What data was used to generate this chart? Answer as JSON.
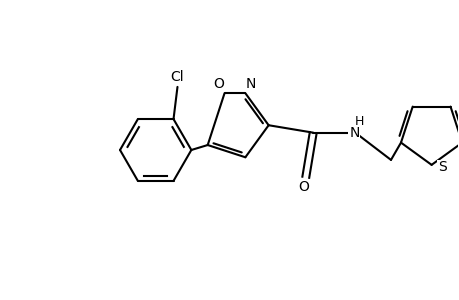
{
  "background_color": "#ffffff",
  "line_color": "#000000",
  "line_width": 1.5,
  "font_size": 10,
  "figsize": [
    4.6,
    3.0
  ],
  "dpi": 100,
  "xlim": [
    0,
    9.2
  ],
  "ylim": [
    0,
    6.0
  ]
}
